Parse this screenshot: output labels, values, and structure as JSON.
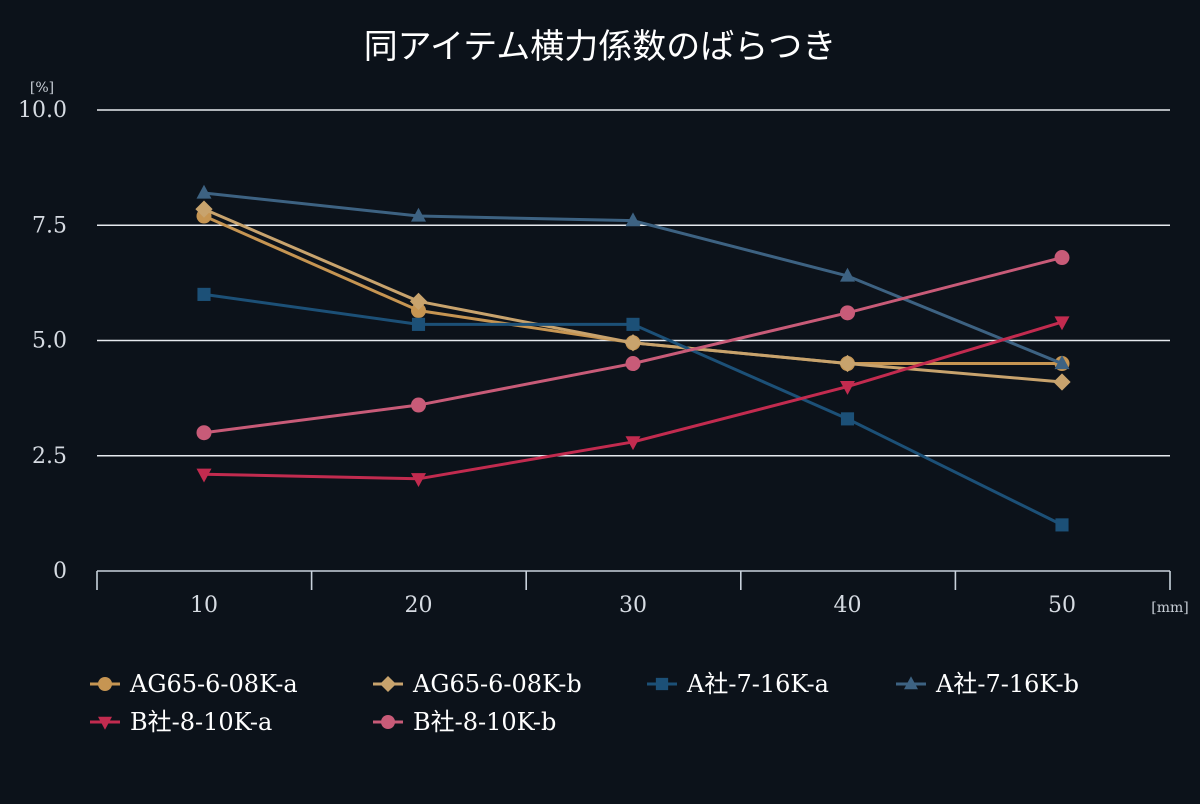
{
  "chart_data": {
    "type": "line",
    "title": "同アイテム横力係数のばらつき",
    "y_unit": "[%]",
    "x_unit": "[mm]",
    "x": [
      10,
      20,
      30,
      40,
      50
    ],
    "x_tick_labels": [
      "10",
      "20",
      "30",
      "40",
      "50"
    ],
    "ylim": [
      0,
      10
    ],
    "y_ticks": [
      0,
      2.5,
      5,
      7.5,
      10
    ],
    "y_tick_labels": [
      "0",
      "2.5",
      "5.0",
      "7.5",
      "10.0"
    ],
    "grid": "horizontal",
    "legend_position": "bottom",
    "series": [
      {
        "name": "AG65-6-08K-a",
        "marker": "circle",
        "color": "#c69552",
        "values": [
          7.7,
          5.65,
          4.95,
          4.5,
          4.5
        ]
      },
      {
        "name": "AG65-6-08K-b",
        "marker": "diamond",
        "color": "#c8a36d",
        "values": [
          7.85,
          5.85,
          4.95,
          4.5,
          4.1
        ]
      },
      {
        "name": "A社-7-16K-a",
        "marker": "square",
        "color": "#1c5077",
        "values": [
          6.0,
          5.35,
          5.35,
          3.3,
          1.0
        ]
      },
      {
        "name": "A社-7-16K-b",
        "marker": "triangle-up",
        "color": "#3d6282",
        "values": [
          8.2,
          7.7,
          7.6,
          6.4,
          4.5
        ]
      },
      {
        "name": "B社-8-10K-a",
        "marker": "triangle-down",
        "color": "#c22b4f",
        "values": [
          2.1,
          2.0,
          2.8,
          4.0,
          5.4
        ]
      },
      {
        "name": "B社-8-10K-b",
        "marker": "circle",
        "color": "#c85b78",
        "values": [
          3.0,
          3.6,
          4.5,
          5.6,
          6.8
        ]
      }
    ]
  }
}
